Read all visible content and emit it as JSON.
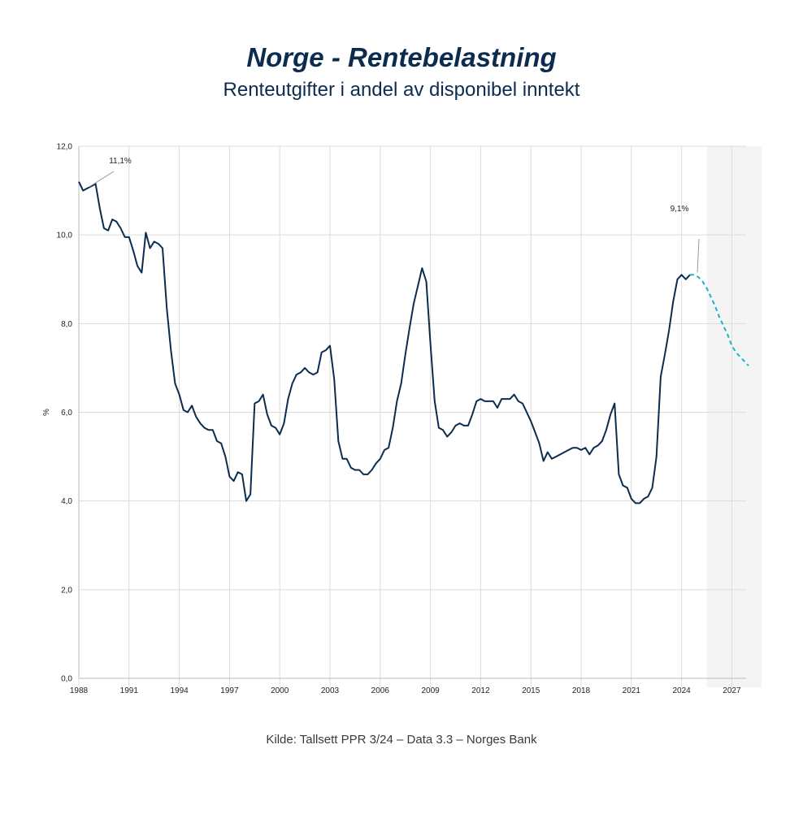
{
  "header": {
    "title": "Norge - Rentebelastning",
    "subtitle": "Renteutgifter i andel av disponibel inntekt"
  },
  "footer": {
    "source": "Kilde: Tallsett PPR 3/24 – Data 3.3 – Norges Bank"
  },
  "colors": {
    "history_line": "#0c2c4f",
    "forecast_line": "#1ab3c6",
    "forecast_shade": "#f4f4f4",
    "grid": "#dcdcdc"
  },
  "chart_data": {
    "type": "line",
    "title": "",
    "xlabel": "",
    "ylabel": "%",
    "ylim": [
      0,
      12
    ],
    "xlim": [
      1988,
      2028.25
    ],
    "y_ticks": [
      "0,0",
      "2,0",
      "4,0",
      "6,0",
      "8,0",
      "10,0",
      "12,0"
    ],
    "y_tick_values": [
      0,
      2,
      4,
      6,
      8,
      10,
      12
    ],
    "x_ticks": [
      "1988",
      "1991",
      "1994",
      "1997",
      "2000",
      "2003",
      "2006",
      "2009",
      "2012",
      "2015",
      "2018",
      "2021",
      "2024",
      "2027"
    ],
    "x_tick_values": [
      1988,
      1991,
      1994,
      1997,
      2000,
      2003,
      2006,
      2009,
      2012,
      2015,
      2018,
      2021,
      2024,
      2027
    ],
    "grid": true,
    "forecast_region": [
      2025.5,
      2028.25
    ],
    "series": [
      {
        "name": "",
        "style": "solid",
        "x": [
          1988.0,
          1988.25,
          1988.5,
          1988.75,
          1989.0,
          1989.25,
          1989.5,
          1989.75,
          1990.0,
          1990.25,
          1990.5,
          1990.75,
          1991.0,
          1991.25,
          1991.5,
          1991.75,
          1992.0,
          1992.25,
          1992.5,
          1992.75,
          1993.0,
          1993.25,
          1993.5,
          1993.75,
          1994.0,
          1994.25,
          1994.5,
          1994.75,
          1995.0,
          1995.25,
          1995.5,
          1995.75,
          1996.0,
          1996.25,
          1996.5,
          1996.75,
          1997.0,
          1997.25,
          1997.5,
          1997.75,
          1998.0,
          1998.25,
          1998.5,
          1998.75,
          1999.0,
          1999.25,
          1999.5,
          1999.75,
          2000.0,
          2000.25,
          2000.5,
          2000.75,
          2001.0,
          2001.25,
          2001.5,
          2001.75,
          2002.0,
          2002.25,
          2002.5,
          2002.75,
          2003.0,
          2003.25,
          2003.5,
          2003.75,
          2004.0,
          2004.25,
          2004.5,
          2004.75,
          2005.0,
          2005.25,
          2005.5,
          2005.75,
          2006.0,
          2006.25,
          2006.5,
          2006.75,
          2007.0,
          2007.25,
          2007.5,
          2007.75,
          2008.0,
          2008.25,
          2008.5,
          2008.75,
          2009.0,
          2009.25,
          2009.5,
          2009.75,
          2010.0,
          2010.25,
          2010.5,
          2010.75,
          2011.0,
          2011.25,
          2011.5,
          2011.75,
          2012.0,
          2012.25,
          2012.5,
          2012.75,
          2013.0,
          2013.25,
          2013.5,
          2013.75,
          2014.0,
          2014.25,
          2014.5,
          2014.75,
          2015.0,
          2015.25,
          2015.5,
          2015.75,
          2016.0,
          2016.25,
          2016.5,
          2016.75,
          2017.0,
          2017.25,
          2017.5,
          2017.75,
          2018.0,
          2018.25,
          2018.5,
          2018.75,
          2019.0,
          2019.25,
          2019.5,
          2019.75,
          2020.0,
          2020.25,
          2020.5,
          2020.75,
          2021.0,
          2021.25,
          2021.5,
          2021.75,
          2022.0,
          2022.25,
          2022.5,
          2022.75,
          2023.0,
          2023.25,
          2023.5,
          2023.75,
          2024.0,
          2024.25,
          2024.5
        ],
        "values": [
          11.2,
          11.0,
          11.05,
          11.1,
          11.15,
          10.6,
          10.15,
          10.1,
          10.35,
          10.3,
          10.15,
          9.95,
          9.95,
          9.65,
          9.3,
          9.15,
          10.05,
          9.7,
          9.85,
          9.8,
          9.7,
          8.35,
          7.4,
          6.65,
          6.4,
          6.05,
          6.0,
          6.15,
          5.9,
          5.75,
          5.65,
          5.6,
          5.6,
          5.35,
          5.3,
          5.0,
          4.55,
          4.45,
          4.65,
          4.6,
          4.0,
          4.15,
          6.2,
          6.25,
          6.4,
          5.95,
          5.7,
          5.65,
          5.5,
          5.75,
          6.3,
          6.65,
          6.85,
          6.9,
          7.0,
          6.9,
          6.85,
          6.9,
          7.35,
          7.4,
          7.5,
          6.75,
          5.35,
          4.95,
          4.95,
          4.75,
          4.7,
          4.7,
          4.6,
          4.6,
          4.7,
          4.85,
          4.95,
          5.15,
          5.2,
          5.65,
          6.25,
          6.65,
          7.3,
          7.9,
          8.45,
          8.85,
          9.25,
          8.95,
          7.55,
          6.25,
          5.65,
          5.6,
          5.45,
          5.55,
          5.7,
          5.75,
          5.7,
          5.7,
          5.95,
          6.25,
          6.3,
          6.25,
          6.25,
          6.25,
          6.1,
          6.3,
          6.3,
          6.3,
          6.4,
          6.25,
          6.2,
          6.0,
          5.8,
          5.55,
          5.3,
          4.9,
          5.1,
          4.95,
          5.0,
          5.05,
          5.1,
          5.15,
          5.2,
          5.2,
          5.15,
          5.2,
          5.05,
          5.2,
          5.25,
          5.35,
          5.6,
          5.95,
          6.2,
          4.6,
          4.35,
          4.3,
          4.05,
          3.95,
          3.95,
          4.05,
          4.1,
          4.3,
          5.0,
          6.8,
          7.3,
          7.85,
          8.5,
          9.0,
          9.1,
          9.0,
          9.1
        ]
      },
      {
        "name": "",
        "style": "dashed",
        "x": [
          2024.5,
          2024.75,
          2025.0,
          2025.25,
          2025.5,
          2025.75,
          2026.0,
          2026.25,
          2026.5,
          2026.75,
          2027.0,
          2027.25,
          2027.5,
          2027.75,
          2028.0
        ],
        "values": [
          9.1,
          9.1,
          9.05,
          8.95,
          8.8,
          8.6,
          8.4,
          8.15,
          7.95,
          7.75,
          7.5,
          7.35,
          7.25,
          7.15,
          7.05
        ]
      }
    ],
    "annotations": [
      {
        "text": "11,1%",
        "x": 1988.75,
        "y": 11.1
      },
      {
        "text": "9,1%",
        "x": 2024.75,
        "y": 9.1
      }
    ]
  }
}
